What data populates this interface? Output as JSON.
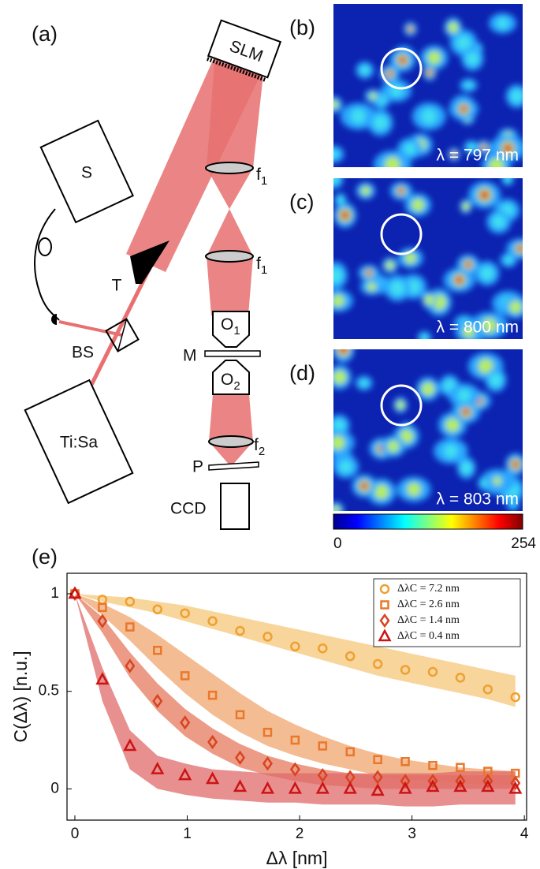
{
  "panel_labels": [
    "(a)",
    "(b)",
    "(c)",
    "(d)",
    "(e)"
  ],
  "setup": {
    "slm": "SLM",
    "source": "S",
    "prism": "T",
    "beam_splitter": "BS",
    "laser": "Ti:Sa",
    "lens_1a": {
      "text": "f",
      "sub": "1"
    },
    "lens_1b": {
      "text": "f",
      "sub": "1"
    },
    "objective_1": {
      "text": "O",
      "sub": "1"
    },
    "mirror": "M",
    "objective_2": {
      "text": "O",
      "sub": "2"
    },
    "lens_2": {
      "text": "f",
      "sub": "2"
    },
    "polarizer": "P",
    "camera": "CCD"
  },
  "speckle_wavelengths": [
    "λ = 797 nm",
    "λ = 800 nm",
    "λ = 803 nm"
  ],
  "colorbar": {
    "ticks": [
      0,
      254
    ]
  },
  "chart_data": {
    "type": "scatter",
    "x_label": "Δλ [nm]",
    "y_label": "C(Δλ) [n.u.]",
    "x": [
      0,
      0.245,
      0.49,
      0.735,
      0.98,
      1.225,
      1.47,
      1.715,
      1.96,
      2.205,
      2.45,
      2.695,
      2.94,
      3.185,
      3.43,
      3.675,
      3.92
    ],
    "xlim": [
      -0.07,
      4.02
    ],
    "xticks": [
      0,
      1,
      2,
      3,
      4
    ],
    "ylim": [
      -0.16,
      1.105
    ],
    "yticks": [
      0,
      0.5,
      1
    ],
    "legend": "upper right",
    "series": [
      {
        "name": "ΔλC = 7.2 nm",
        "color": "#eea032",
        "band_color": "#f5c77a",
        "marker": "circle",
        "values": [
          1,
          0.97,
          0.96,
          0.92,
          0.9,
          0.86,
          0.81,
          0.78,
          0.73,
          0.72,
          0.68,
          0.64,
          0.61,
          0.6,
          0.57,
          0.51,
          0.47
        ],
        "upper": [
          1,
          0.99,
          0.98,
          0.96,
          0.94,
          0.91,
          0.88,
          0.85,
          0.82,
          0.79,
          0.76,
          0.73,
          0.7,
          0.67,
          0.64,
          0.61,
          0.58
        ],
        "lower": [
          1,
          0.96,
          0.93,
          0.9,
          0.86,
          0.82,
          0.78,
          0.74,
          0.7,
          0.66,
          0.62,
          0.58,
          0.55,
          0.52,
          0.49,
          0.46,
          0.42
        ]
      },
      {
        "name": "ΔλC = 2.6 nm",
        "color": "#e8782c",
        "band_color": "#f0a66e",
        "marker": "square",
        "values": [
          1,
          0.93,
          0.83,
          0.71,
          0.58,
          0.48,
          0.38,
          0.29,
          0.25,
          0.22,
          0.19,
          0.15,
          0.14,
          0.12,
          0.11,
          0.09,
          0.08
        ],
        "upper": [
          1,
          0.95,
          0.88,
          0.79,
          0.69,
          0.59,
          0.49,
          0.4,
          0.33,
          0.27,
          0.22,
          0.18,
          0.15,
          0.13,
          0.11,
          0.1,
          0.09
        ],
        "lower": [
          1,
          0.89,
          0.76,
          0.62,
          0.49,
          0.38,
          0.29,
          0.22,
          0.17,
          0.13,
          0.1,
          0.07,
          0.05,
          0.04,
          0.03,
          0.02,
          0.02
        ]
      },
      {
        "name": "ΔλC = 1.4 nm",
        "color": "#d84420",
        "band_color": "#e57a5e",
        "marker": "diamond",
        "values": [
          1,
          0.86,
          0.63,
          0.45,
          0.34,
          0.24,
          0.16,
          0.13,
          0.1,
          0.07,
          0.06,
          0.06,
          0.04,
          0.04,
          0.04,
          0.04,
          0.03
        ],
        "upper": [
          1,
          0.88,
          0.7,
          0.54,
          0.41,
          0.31,
          0.23,
          0.17,
          0.13,
          0.1,
          0.08,
          0.07,
          0.07,
          0.07,
          0.07,
          0.07,
          0.07
        ],
        "lower": [
          1,
          0.8,
          0.57,
          0.4,
          0.27,
          0.18,
          0.11,
          0.07,
          0.04,
          0.02,
          0.01,
          0,
          0,
          0,
          0,
          0,
          0
        ]
      },
      {
        "name": "ΔλC = 0.4 nm",
        "color": "#cc1414",
        "band_color": "#e06a6a",
        "marker": "triangle",
        "values": [
          1,
          0.56,
          0.22,
          0.1,
          0.07,
          0.05,
          0.01,
          0,
          0,
          0,
          0,
          -0.01,
          0,
          0.01,
          0.01,
          0.01,
          0
        ],
        "upper": [
          1,
          0.62,
          0.3,
          0.17,
          0.13,
          0.1,
          0.09,
          0.08,
          0.08,
          0.08,
          0.08,
          0.08,
          0.08,
          0.08,
          0.09,
          0.09,
          0.09
        ],
        "lower": [
          1,
          0.45,
          0.1,
          0,
          -0.03,
          -0.05,
          -0.06,
          -0.07,
          -0.07,
          -0.08,
          -0.08,
          -0.08,
          -0.09,
          -0.09,
          -0.08,
          -0.08,
          -0.08
        ]
      }
    ]
  }
}
